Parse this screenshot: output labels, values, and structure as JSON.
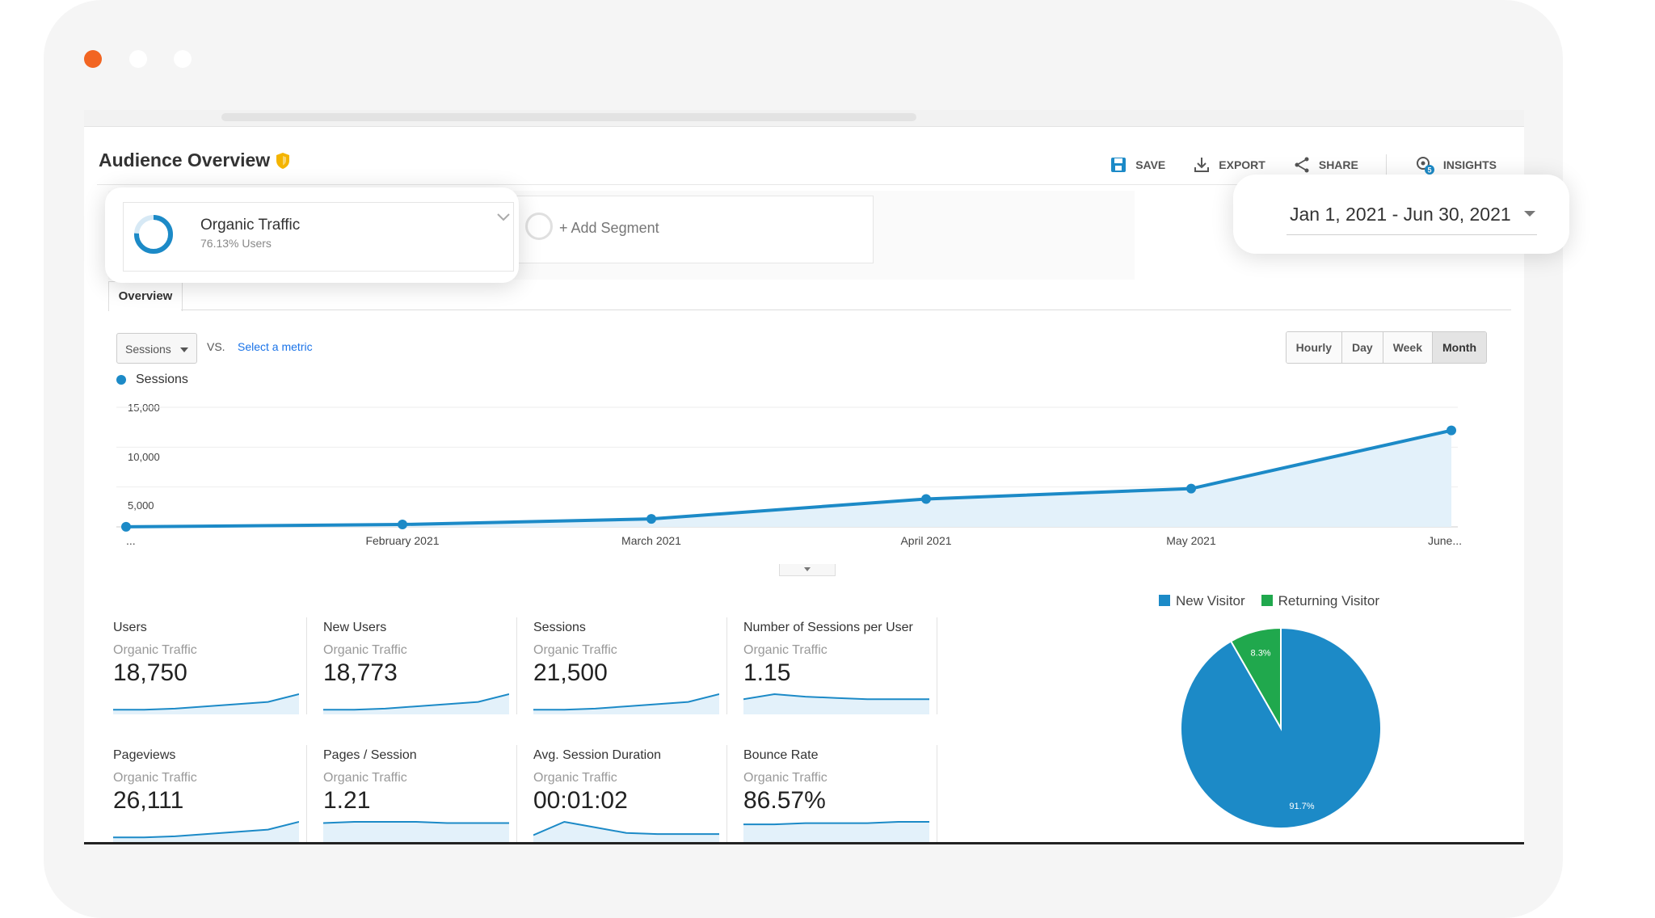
{
  "window": {
    "traffic_lights": [
      "close",
      "minimize",
      "maximize"
    ]
  },
  "header": {
    "title": "Audience Overview",
    "actions": [
      {
        "label": "SAVE",
        "icon": "save-icon"
      },
      {
        "label": "EXPORT",
        "icon": "export-icon"
      },
      {
        "label": "SHARE",
        "icon": "share-icon"
      },
      {
        "label": "INSIGHTS",
        "icon": "insights-icon",
        "badge": "5"
      }
    ]
  },
  "segment": {
    "name": "Organic Traffic",
    "sub": "76.13% Users",
    "add_label": "+ Add Segment"
  },
  "date_range": "Jan 1, 2021 - Jun 30, 2021",
  "tabs": [
    "Overview"
  ],
  "controls": {
    "metric": "Sessions",
    "vs_label": "VS.",
    "select_metric": "Select a metric",
    "periods": [
      "Hourly",
      "Day",
      "Week",
      "Month"
    ],
    "active_period": "Month"
  },
  "colors": {
    "accent": "#1c8ac7",
    "returning": "#20a84d",
    "link": "#1a73e8"
  },
  "chart_data": [
    {
      "type": "area",
      "series": [
        {
          "name": "Sessions",
          "x": [
            "...",
            "February 2021",
            "March 2021",
            "April 2021",
            "May 2021",
            "June..."
          ],
          "values": [
            10,
            300,
            1000,
            3500,
            4800,
            12100
          ]
        }
      ],
      "y_ticks": [
        "15,000",
        "10,000",
        "5,000"
      ],
      "ylim": [
        0,
        15000
      ],
      "grid": true
    },
    {
      "type": "pie",
      "labels": [
        "New Visitor",
        "Returning Visitor"
      ],
      "values": [
        91.7,
        8.3
      ],
      "slice_labels": [
        "91.7%",
        "8.3%"
      ],
      "legend": "top"
    }
  ],
  "metrics": [
    {
      "name": "Users",
      "segment": "Organic Traffic",
      "value": "18,750",
      "trend": [
        2,
        2,
        3,
        5,
        7,
        9,
        16
      ]
    },
    {
      "name": "New Users",
      "segment": "Organic Traffic",
      "value": "18,773",
      "trend": [
        2,
        2,
        3,
        5,
        7,
        9,
        16
      ]
    },
    {
      "name": "Sessions",
      "segment": "Organic Traffic",
      "value": "21,500",
      "trend": [
        2,
        2,
        3,
        5,
        7,
        9,
        16
      ]
    },
    {
      "name": "Number of Sessions per User",
      "segment": "Organic Traffic",
      "value": "1.15",
      "trend": [
        10,
        14,
        12,
        11,
        10,
        10,
        10
      ]
    },
    {
      "name": "Pageviews",
      "segment": "Organic Traffic",
      "value": "26,111",
      "trend": [
        2,
        2,
        3,
        5,
        7,
        9,
        16
      ]
    },
    {
      "name": "Pages / Session",
      "segment": "Organic Traffic",
      "value": "1.21",
      "trend": [
        14,
        15,
        15,
        15,
        14,
        14,
        14
      ]
    },
    {
      "name": "Avg. Session Duration",
      "segment": "Organic Traffic",
      "value": "00:01:02",
      "trend": [
        4,
        16,
        11,
        6,
        5,
        5,
        5
      ]
    },
    {
      "name": "Bounce Rate",
      "segment": "Organic Traffic",
      "value": "86.57%",
      "trend": [
        12,
        12,
        13,
        13,
        13,
        14,
        14
      ]
    }
  ]
}
